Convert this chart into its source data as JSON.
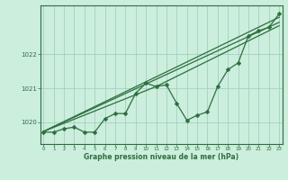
{
  "background_color": "#cceedd",
  "grid_color": "#99ccbb",
  "line_color": "#2d6e3e",
  "marker_color": "#2d6e3e",
  "hours": [
    0,
    1,
    2,
    3,
    4,
    5,
    6,
    7,
    8,
    9,
    10,
    11,
    12,
    13,
    14,
    15,
    16,
    17,
    18,
    19,
    20,
    21,
    22,
    23
  ],
  "line1": [
    1019.7,
    1019.7,
    1019.8,
    1019.85,
    1019.7,
    1019.7,
    1020.1,
    1020.25,
    1020.25,
    1020.85,
    1021.15,
    1021.05,
    1021.1,
    1020.55,
    1020.05,
    1020.2,
    1020.3,
    1021.05,
    1021.55,
    1021.75,
    1022.55,
    1022.7,
    1022.8,
    1023.2
  ],
  "line2_x": [
    0,
    23
  ],
  "line2_y": [
    1019.72,
    1023.1
  ],
  "line3_x": [
    0,
    23
  ],
  "line3_y": [
    1019.72,
    1022.95
  ],
  "line4_x": [
    0,
    11,
    23
  ],
  "line4_y": [
    1019.72,
    1021.05,
    1022.85
  ],
  "ylim": [
    1019.35,
    1023.45
  ],
  "xlim": [
    -0.3,
    23.3
  ],
  "yticks": [
    1020,
    1021,
    1022
  ],
  "xticks": [
    0,
    1,
    2,
    3,
    4,
    5,
    6,
    7,
    8,
    9,
    10,
    11,
    12,
    13,
    14,
    15,
    16,
    17,
    18,
    19,
    20,
    21,
    22,
    23
  ],
  "xlabel": "Graphe pression niveau de la mer (hPa)",
  "markersize": 2.5,
  "linewidth": 0.9
}
